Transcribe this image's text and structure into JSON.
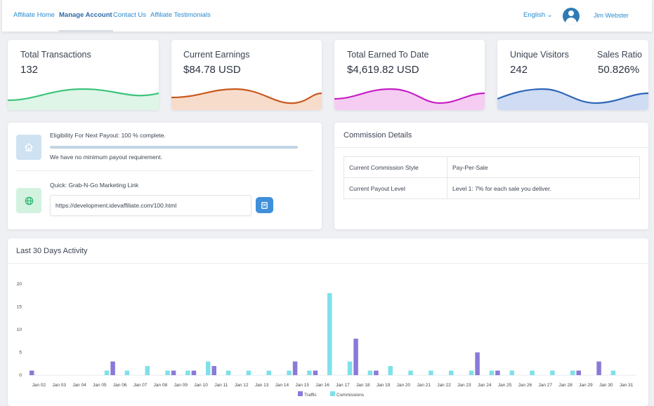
{
  "nav": {
    "links": [
      "Affiliate Home",
      "Manage Account",
      "Contact Us",
      "Affiliate Testimonials"
    ],
    "language": "English ⌄",
    "user_name": "Jim Webster"
  },
  "stats": [
    {
      "label": "Total Transactions",
      "value": "132",
      "color": "#3cc47c",
      "fill": "#dff5e8"
    },
    {
      "label": "Current Earnings",
      "value": "$84.78 USD",
      "color": "#c8591f",
      "fill": "#f8dccb"
    },
    {
      "label": "Total Earned To Date",
      "value": "$4,619.82 USD",
      "color": "#c61fc4",
      "fill": "#f5cdf2"
    },
    {
      "label": "Unique Visitors",
      "value": "242",
      "label2": "Sales Ratio",
      "value2": "50.826%",
      "color": "#2e67b8",
      "fill": "#cfdcf3"
    }
  ],
  "payout": {
    "eligibility_text": "Eligibility For Next Payout: 100 % complete.",
    "progress_percent": 100,
    "min_text": "We have no minimum payout requirement.",
    "link_label": "Quick: Grab-N-Go Marketing Link",
    "link_value": "https://development.idevaffiliate.com/100.html"
  },
  "commission": {
    "title": "Commission Details",
    "rows": [
      [
        "Current Commission Style",
        "Pay-Per-Sale"
      ],
      [
        "Current Payout Level",
        "Level 1: 7% for each sale you deliver."
      ]
    ]
  },
  "activity": {
    "title": "Last 30 Days Activity"
  },
  "chart_data": {
    "type": "bar",
    "categories": [
      "Jan 02",
      "Jan 03",
      "Jan 04",
      "Jan 05",
      "Jan 06",
      "Jan 07",
      "Jan 08",
      "Jan 09",
      "Jan 10",
      "Jan 11",
      "Jan 12",
      "Jan 13",
      "Jan 14",
      "Jan 15",
      "Jan 16",
      "Jan 17",
      "Jan 18",
      "Jan 19",
      "Jan 20",
      "Jan 21",
      "Jan 22",
      "Jan 23",
      "Jan 24",
      "Jan 25",
      "Jan 26",
      "Jan 27",
      "Jan 28",
      "Jan 29",
      "Jan 30",
      "Jan 31"
    ],
    "series": [
      {
        "name": "Traffic",
        "color": "#8b79d9",
        "values": [
          1,
          0,
          0,
          0,
          3,
          0,
          0,
          1,
          1,
          2,
          0,
          0,
          0,
          3,
          1,
          0,
          8,
          1,
          0,
          0,
          0,
          0,
          5,
          1,
          0,
          0,
          0,
          1,
          3,
          0
        ]
      },
      {
        "name": "Commissions",
        "color": "#7fe0ea",
        "values": [
          0,
          0,
          0,
          1,
          1,
          2,
          1,
          1,
          3,
          1,
          1,
          1,
          1,
          1,
          18,
          3,
          1,
          2,
          1,
          1,
          1,
          1,
          1,
          1,
          1,
          1,
          1,
          0,
          1,
          0
        ]
      }
    ],
    "yticks": [
      0,
      5,
      10,
      15,
      20
    ],
    "ylim": [
      0,
      20
    ],
    "legend": "bottom-center"
  }
}
